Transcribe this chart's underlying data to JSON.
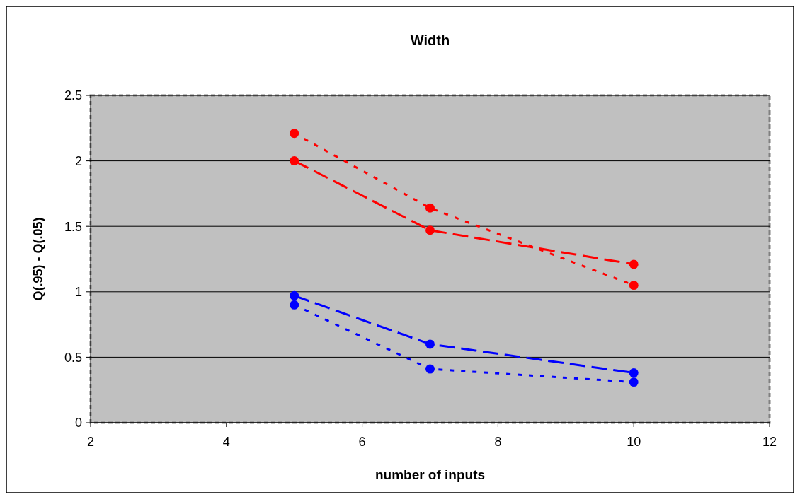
{
  "chart_data": {
    "type": "line",
    "title": "Width",
    "xlabel": "number of inputs",
    "ylabel": "Q(.95) - Q(.05)",
    "x": [
      5,
      7,
      10
    ],
    "series": [
      {
        "color": "#ff0000",
        "values": [
          2.21,
          1.64,
          1.05
        ],
        "line_style": "dotted"
      },
      {
        "color": "#ff0000",
        "values": [
          2.0,
          1.47,
          1.21
        ],
        "line_style": "dashed"
      },
      {
        "color": "#0000ff",
        "values": [
          0.97,
          0.6,
          0.38
        ],
        "line_style": "dashed"
      },
      {
        "color": "#0000ff",
        "values": [
          0.9,
          0.41,
          0.31
        ],
        "line_style": "dotted"
      }
    ],
    "xlim": [
      2,
      12
    ],
    "xticks": [
      2,
      4,
      6,
      8,
      10,
      12
    ],
    "ylim": [
      0,
      2.5
    ],
    "yticks": [
      0,
      0.5,
      1,
      1.5,
      2,
      2.5
    ],
    "grid": "y",
    "marker": "circle"
  }
}
